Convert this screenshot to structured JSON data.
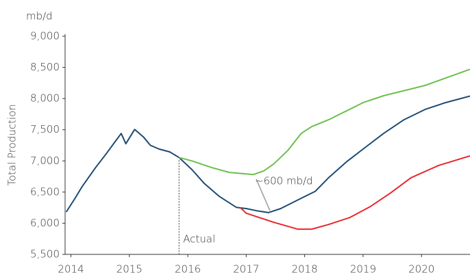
{
  "chart_data": {
    "type": "line",
    "unit_label": "mb/d",
    "y_axis_label": "Total Production",
    "xlim": [
      2013.9,
      2020.83
    ],
    "xticks": [
      2014,
      2015,
      2016,
      2017,
      2018,
      2019,
      2020
    ],
    "ylim": [
      5500,
      9000
    ],
    "yticks": [
      {
        "value": 5500,
        "label": "5,500"
      },
      {
        "value": 6000,
        "label": "6,000"
      },
      {
        "value": 6500,
        "label": "6,500"
      },
      {
        "value": 7000,
        "label": "7,000"
      },
      {
        "value": 7500,
        "label": "7,500"
      },
      {
        "value": 8000,
        "label": "8,000"
      },
      {
        "value": 8500,
        "label": "8,500"
      },
      {
        "value": 9000,
        "label": "9,000"
      }
    ],
    "grid": false,
    "series": [
      {
        "color": "#1b4a72",
        "x": [
          2013.92,
          2014.07,
          2014.19,
          2014.28,
          2014.42,
          2014.6,
          2014.75,
          2014.86,
          2014.94,
          2015.09,
          2015.24,
          2015.36,
          2015.51,
          2015.69,
          2015.85,
          2016.07,
          2016.28,
          2016.54,
          2016.83,
          2017.0,
          2017.18,
          2017.38,
          2017.59,
          2017.94,
          2018.18,
          2018.41,
          2018.71,
          2019.0,
          2019.35,
          2019.7,
          2020.06,
          2020.41,
          2020.83
        ],
        "values": [
          6180,
          6400,
          6585,
          6705,
          6890,
          7110,
          7300,
          7440,
          7275,
          7505,
          7385,
          7250,
          7190,
          7145,
          7055,
          6860,
          6640,
          6430,
          6255,
          6235,
          6200,
          6170,
          6235,
          6400,
          6510,
          6730,
          6980,
          7190,
          7440,
          7660,
          7825,
          7935,
          8040
        ]
      },
      {
        "color": "#6abf4b",
        "x": [
          2015.85,
          2016.07,
          2016.42,
          2016.71,
          2017.12,
          2017.3,
          2017.47,
          2017.71,
          2017.94,
          2018.12,
          2018.41,
          2019.0,
          2019.35,
          2020.06,
          2020.83
        ],
        "values": [
          7055,
          7000,
          6890,
          6815,
          6780,
          6840,
          6950,
          7165,
          7440,
          7550,
          7660,
          7935,
          8045,
          8210,
          8470
        ]
      },
      {
        "color": "#e8262b",
        "x": [
          2016.9,
          2017.0,
          2017.47,
          2017.88,
          2018.12,
          2018.41,
          2018.77,
          2019.12,
          2019.47,
          2019.82,
          2020.29,
          2020.83
        ],
        "values": [
          6250,
          6160,
          6015,
          5905,
          5905,
          5980,
          6090,
          6265,
          6485,
          6730,
          6925,
          7080
        ]
      }
    ],
    "annotations": [
      {
        "text": "Actual",
        "x": 2015.85
      },
      {
        "text": "~600 mb/d"
      }
    ]
  }
}
